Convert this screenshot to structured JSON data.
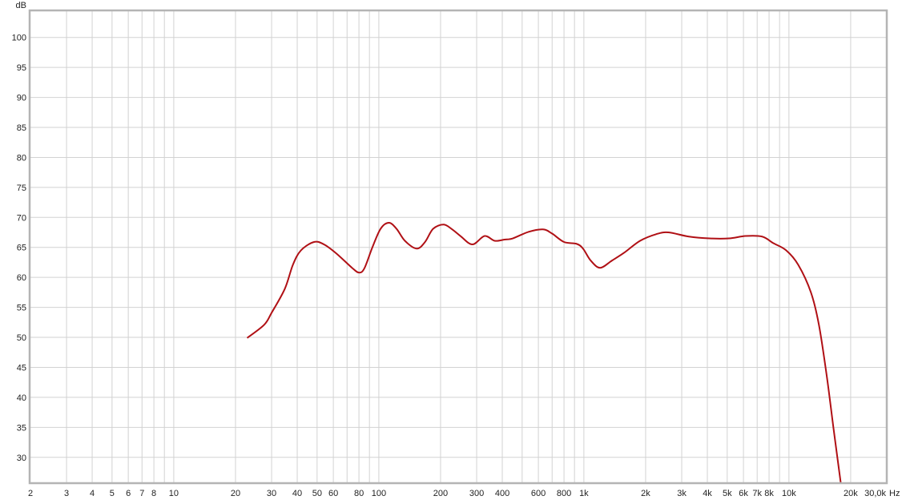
{
  "chart_data": {
    "type": "line",
    "xscale": "log",
    "xlim": [
      2,
      30000
    ],
    "ylim": [
      25.7,
      104.5
    ],
    "ylabel": "dB",
    "xunit": "Hz",
    "grid": true,
    "line_color": "#b01015",
    "x_ticks": [
      {
        "v": 2,
        "label": "2"
      },
      {
        "v": 3,
        "label": "3"
      },
      {
        "v": 4,
        "label": "4"
      },
      {
        "v": 5,
        "label": "5"
      },
      {
        "v": 6,
        "label": "6"
      },
      {
        "v": 7,
        "label": "7"
      },
      {
        "v": 8,
        "label": "8"
      },
      {
        "v": 10,
        "label": "10"
      },
      {
        "v": 20,
        "label": "20"
      },
      {
        "v": 30,
        "label": "30"
      },
      {
        "v": 40,
        "label": "40"
      },
      {
        "v": 50,
        "label": "50"
      },
      {
        "v": 60,
        "label": "60"
      },
      {
        "v": 80,
        "label": "80"
      },
      {
        "v": 100,
        "label": "100"
      },
      {
        "v": 200,
        "label": "200"
      },
      {
        "v": 300,
        "label": "300"
      },
      {
        "v": 400,
        "label": "400"
      },
      {
        "v": 600,
        "label": "600"
      },
      {
        "v": 800,
        "label": "800"
      },
      {
        "v": 1000,
        "label": "1k"
      },
      {
        "v": 2000,
        "label": "2k"
      },
      {
        "v": 3000,
        "label": "3k"
      },
      {
        "v": 4000,
        "label": "4k"
      },
      {
        "v": 5000,
        "label": "5k"
      },
      {
        "v": 6000,
        "label": "6k"
      },
      {
        "v": 7000,
        "label": "7k"
      },
      {
        "v": 8000,
        "label": "8k"
      },
      {
        "v": 10000,
        "label": "10k"
      },
      {
        "v": 20000,
        "label": "20k"
      },
      {
        "v": 30000,
        "label": "30,0k"
      }
    ],
    "y_ticks": [
      30,
      35,
      40,
      45,
      50,
      55,
      60,
      65,
      70,
      75,
      80,
      85,
      90,
      95,
      100
    ],
    "series": [
      {
        "x": [
          22.8,
          27.6,
          30,
          34.8,
          38.1,
          41.7,
          48.3,
          54,
          62,
          74,
          80,
          85,
          93,
          102,
          112,
          122,
          134,
          153,
          168,
          184,
          207,
          228,
          250,
          286,
          328,
          367,
          410,
          450,
          538,
          632,
          700,
          800,
          920,
          990,
          1080,
          1200,
          1370,
          1570,
          1880,
          2250,
          2580,
          3250,
          4100,
          5100,
          6150,
          7400,
          8400,
          9700,
          11100,
          12800,
          14000,
          15300,
          16500,
          17900
        ],
        "y": [
          49.9,
          52.1,
          54.1,
          58.1,
          62.1,
          64.5,
          65.9,
          65.5,
          64,
          61.6,
          60.8,
          61.5,
          65,
          68.1,
          69.1,
          68.1,
          66.1,
          64.8,
          65.9,
          68.1,
          68.8,
          68,
          66.9,
          65.5,
          66.9,
          66.1,
          66.3,
          66.5,
          67.6,
          68,
          67.3,
          65.9,
          65.6,
          64.8,
          62.8,
          61.6,
          62.8,
          64.1,
          66.1,
          67.2,
          67.5,
          66.8,
          66.5,
          66.5,
          66.9,
          66.8,
          65.7,
          64.5,
          62.1,
          57.5,
          52.1,
          43.5,
          34.8,
          25.7
        ]
      }
    ]
  }
}
